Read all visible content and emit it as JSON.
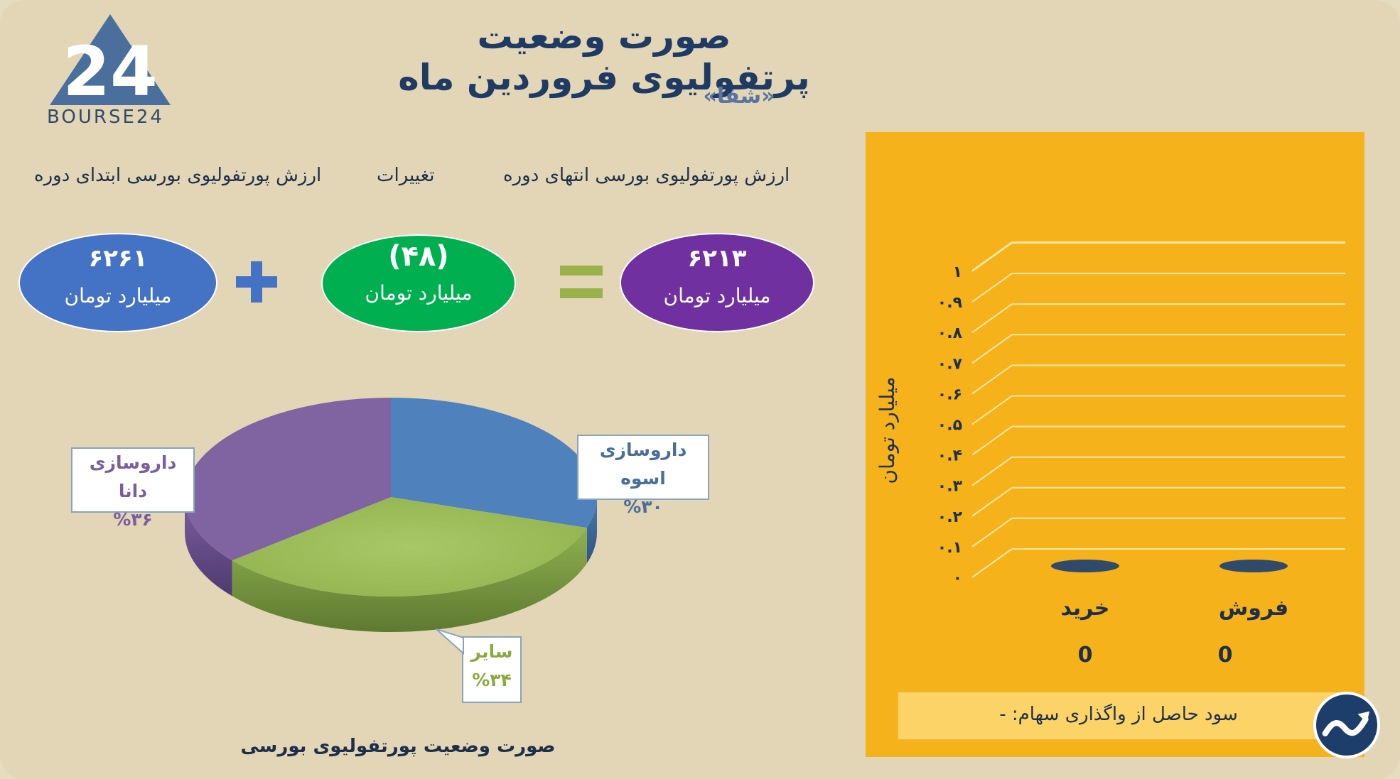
{
  "header": {
    "title": "صورت وضعیت پرتفولیوی فروردین ماه",
    "subtitle": "«شفا»"
  },
  "logo": {
    "text": "BOURSE24",
    "mark": "24"
  },
  "equation": {
    "labels": {
      "end": "ارزش پورتفولیوی بورسی انتهای دوره",
      "change": "تغییرات",
      "start": "ارزش پورتفولیوی بورسی ابتدای دوره"
    },
    "end": {
      "value": "۶۲۱۳",
      "unit": "میلیارد تومان",
      "color": "#7030a0"
    },
    "change": {
      "value": "(۴۸)",
      "unit": "میلیارد تومان",
      "color": "#00b050"
    },
    "start": {
      "value": "۶۲۶۱",
      "unit": "میلیارد تومان",
      "color": "#4472c4"
    },
    "equals_icon": "equals-sign",
    "plus_icon": "plus-sign"
  },
  "colors": {
    "accent": "#f6b21a",
    "title": "#1f3a63",
    "equals": "#9ab24a",
    "plus": "#4472c4"
  },
  "chart_data": [
    {
      "type": "pie",
      "title": "صورت وضعیت پورتفولیوی بورسی",
      "slices": [
        {
          "label": "داروسازی اسوه",
          "value": 30,
          "display": "%۳۰",
          "color": "#4f81bd"
        },
        {
          "label": "سایر",
          "value": 34,
          "display": "%۳۴",
          "color": "#9bbb59"
        },
        {
          "label": "داروسازی دانا",
          "value": 36,
          "display": "%۳۶",
          "color": "#8064a2"
        }
      ]
    },
    {
      "type": "bar",
      "categories": [
        "خرید",
        "فروش"
      ],
      "values": [
        0,
        0
      ],
      "value_labels": [
        "0",
        "0"
      ],
      "ylabel": "میلیارد تومان",
      "ylim": [
        0,
        1
      ],
      "yticks": [
        "۰",
        "۰.۱",
        "۰.۲",
        "۰.۳",
        "۰.۴",
        "۰.۵",
        "۰.۶",
        "۰.۷",
        "۰.۸",
        "۰.۹",
        "۱"
      ],
      "grid": true
    }
  ],
  "profit": {
    "label": "سود حاصل از واگذاری سهام: -"
  },
  "badge_icon": "trend-up-icon"
}
